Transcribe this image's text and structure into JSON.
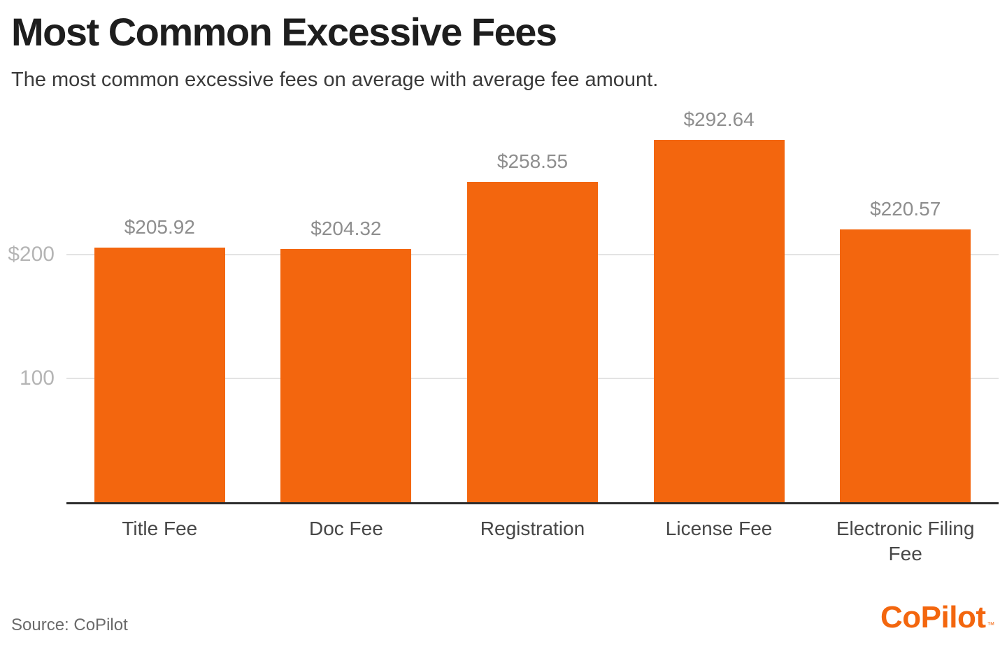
{
  "header": {
    "title": "Most Common Excessive Fees",
    "subtitle": "The most common excessive fees on average with average fee amount."
  },
  "chart_data": {
    "type": "bar",
    "title": "Most Common Excessive Fees",
    "subtitle": "The most common excessive fees on average with average fee amount.",
    "categories": [
      "Title Fee",
      "Doc Fee",
      "Registration",
      "License Fee",
      "Electronic Filing Fee"
    ],
    "values": [
      205.92,
      204.32,
      258.55,
      292.64,
      220.57
    ],
    "value_labels": [
      "$205.92",
      "$204.32",
      "$258.55",
      "$292.64",
      "$220.57"
    ],
    "xlabel": "",
    "ylabel": "",
    "y_ticks": [
      {
        "value": 200,
        "label": "$200"
      },
      {
        "value": 100,
        "label": "100"
      }
    ],
    "ylim": [
      0,
      326
    ],
    "grid": "horizontal-light-behind-bars",
    "legend": "none",
    "colors": {
      "bar": "#F3660E",
      "value_label": "#8e8e8e",
      "tick_label": "#b5b5b5",
      "gridline": "#e3e3e3",
      "axis_line": "#2d2d2d",
      "category_label": "#474747"
    }
  },
  "footer": {
    "source": "Source: CoPilot",
    "logo_text": "CoPilot",
    "logo_trademark": "™",
    "logo_color": "#F3660E"
  }
}
